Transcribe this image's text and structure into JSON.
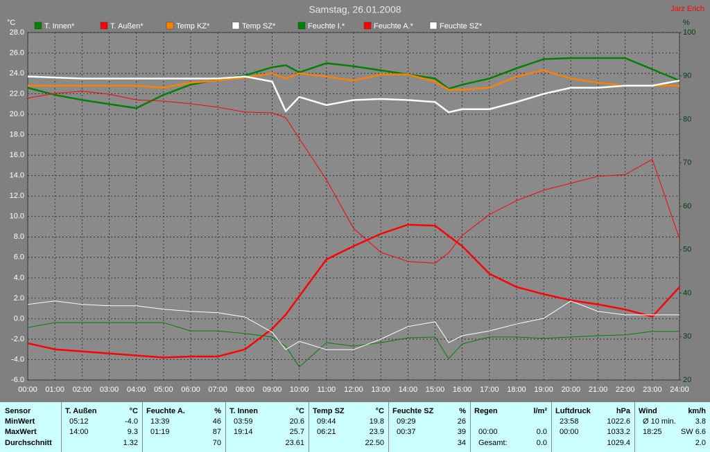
{
  "chart_data": {
    "type": "line",
    "title": "Samstag, 26.01.2008",
    "author": "Jarz Erich",
    "ylabel": "°C",
    "y2label": "%",
    "x": [
      0,
      1,
      2,
      3,
      4,
      5,
      6,
      7,
      8,
      9,
      9.5,
      10,
      11,
      12,
      13,
      14,
      15,
      15.5,
      16,
      17,
      18,
      19,
      20,
      21,
      22,
      23,
      24
    ],
    "xlim": [
      0,
      24
    ],
    "xticks": [
      {
        "value": 0,
        "label": "00:00"
      },
      {
        "value": 1,
        "label": "01:00"
      },
      {
        "value": 2,
        "label": "02:00"
      },
      {
        "value": 3,
        "label": "03:00"
      },
      {
        "value": 4,
        "label": "04:00"
      },
      {
        "value": 5,
        "label": "05:00"
      },
      {
        "value": 6,
        "label": "06:00"
      },
      {
        "value": 7,
        "label": "07:00"
      },
      {
        "value": 8,
        "label": "08:00"
      },
      {
        "value": 9,
        "label": "09:00"
      },
      {
        "value": 10,
        "label": "10:00"
      },
      {
        "value": 11,
        "label": "11:00"
      },
      {
        "value": 12,
        "label": "12:00"
      },
      {
        "value": 13,
        "label": "13:00"
      },
      {
        "value": 14,
        "label": "14:00"
      },
      {
        "value": 15,
        "label": "15:00"
      },
      {
        "value": 16,
        "label": "16:00"
      },
      {
        "value": 17,
        "label": "17:00"
      },
      {
        "value": 18,
        "label": "18:00"
      },
      {
        "value": 19,
        "label": "19:00"
      },
      {
        "value": 20,
        "label": "20:00"
      },
      {
        "value": 21,
        "label": "21:00"
      },
      {
        "value": 22,
        "label": "22:00"
      },
      {
        "value": 23,
        "label": "23:00"
      },
      {
        "value": 24,
        "label": "24:00"
      }
    ],
    "ylim": [
      -6,
      28
    ],
    "yticks": [
      {
        "value": -6,
        "label": "-6.0"
      },
      {
        "value": -4,
        "label": "-4.0"
      },
      {
        "value": -2,
        "label": "-2.0"
      },
      {
        "value": 0,
        "label": "0.0"
      },
      {
        "value": 2,
        "label": "2.0"
      },
      {
        "value": 4,
        "label": "4.0"
      },
      {
        "value": 6,
        "label": "6.0"
      },
      {
        "value": 8,
        "label": "8.0"
      },
      {
        "value": 10,
        "label": "10.0"
      },
      {
        "value": 12,
        "label": "12.0"
      },
      {
        "value": 14,
        "label": "14.0"
      },
      {
        "value": 16,
        "label": "16.0"
      },
      {
        "value": 18,
        "label": "18.0"
      },
      {
        "value": 20,
        "label": "20.0"
      },
      {
        "value": 22,
        "label": "22.0"
      },
      {
        "value": 24,
        "label": "24.0"
      },
      {
        "value": 26,
        "label": "26.0"
      },
      {
        "value": 28,
        "label": "28.0"
      }
    ],
    "y2lim": [
      20,
      100
    ],
    "y2ticks": [
      20,
      30,
      40,
      50,
      60,
      70,
      80,
      90,
      100
    ],
    "grid": true,
    "series": [
      {
        "name": "T. Innen*",
        "color": "#008000",
        "line_width": 2.5,
        "values": [
          22.6,
          21.9,
          21.4,
          21.0,
          20.6,
          21.9,
          22.9,
          23.4,
          23.8,
          24.6,
          24.8,
          24.1,
          25.0,
          24.7,
          24.3,
          23.9,
          23.5,
          22.5,
          22.9,
          23.5,
          24.5,
          25.4,
          25.5,
          25.5,
          25.5,
          24.4,
          23.3
        ]
      },
      {
        "name": "T. Außen*",
        "color": "#ff0000",
        "line_width": 2.5,
        "values": [
          -2.4,
          -3.0,
          -3.2,
          -3.4,
          -3.6,
          -3.8,
          -3.7,
          -3.7,
          -3.0,
          -1.0,
          0.4,
          2.2,
          5.8,
          7.1,
          8.3,
          9.2,
          9.1,
          8.1,
          7.1,
          4.4,
          3.1,
          2.4,
          1.8,
          1.4,
          0.9,
          0.2,
          3.1
        ]
      },
      {
        "name": "Temp KZ*",
        "color": "#ff8000",
        "line_width": 2.5,
        "values": [
          22.8,
          22.8,
          22.8,
          22.8,
          22.8,
          22.6,
          23.1,
          23.3,
          23.6,
          24.0,
          23.5,
          24.0,
          23.7,
          23.3,
          23.9,
          23.9,
          23.2,
          22.4,
          22.4,
          22.6,
          23.7,
          24.3,
          23.5,
          23.1,
          22.8,
          22.8,
          22.8
        ]
      },
      {
        "name": "Temp SZ*",
        "color": "#ffffff",
        "line_width": 2.5,
        "values": [
          23.7,
          23.6,
          23.5,
          23.5,
          23.5,
          23.5,
          23.5,
          23.5,
          23.7,
          23.2,
          20.3,
          21.7,
          20.9,
          21.4,
          21.5,
          21.4,
          21.2,
          20.2,
          20.5,
          20.5,
          21.2,
          22.0,
          22.6,
          22.6,
          22.8,
          22.8,
          23.3
        ]
      },
      {
        "name": "Feuchte I.*",
        "color": "#008000",
        "line_width": 1,
        "axis": "y2",
        "values": [
          32.1,
          33.2,
          33.2,
          33.2,
          33.2,
          33.2,
          31.3,
          31.3,
          30.7,
          29.9,
          27.8,
          23.0,
          28.6,
          27.8,
          28.6,
          29.7,
          29.9,
          24.9,
          28.3,
          29.9,
          29.9,
          29.6,
          29.9,
          30.2,
          30.4,
          31.2,
          31.2
        ]
      },
      {
        "name": "Feuchte A.*",
        "color": "#ff0000",
        "line_width": 1,
        "axis": "y2",
        "values": [
          84.9,
          86.0,
          86.5,
          85.8,
          84.5,
          84.2,
          83.6,
          82.8,
          81.7,
          81.5,
          80.4,
          75.6,
          66.1,
          54.9,
          49.4,
          47.3,
          46.9,
          49.3,
          53.3,
          58.1,
          61.3,
          63.7,
          65.3,
          66.9,
          67.3,
          70.8,
          52.5
        ]
      },
      {
        "name": "Feuchte SZ*",
        "color": "#ffffff",
        "line_width": 1,
        "axis": "y2",
        "values": [
          37.4,
          38.2,
          37.4,
          37.1,
          37.1,
          36.3,
          35.8,
          35.5,
          34.5,
          31.0,
          27.0,
          28.9,
          27.0,
          27.0,
          29.4,
          32.3,
          33.4,
          28.6,
          30.2,
          31.3,
          32.9,
          34.2,
          38.2,
          35.8,
          35.0,
          35.0,
          35.0
        ]
      }
    ]
  },
  "table": {
    "sensor_label": "Sensor",
    "row_labels": [
      "MinWert",
      "MaxWert",
      "Durchschnitt"
    ],
    "groups": [
      {
        "name": "T. Außen",
        "unit": "°C",
        "min": {
          "time": "05:12",
          "value": "-4.0"
        },
        "max": {
          "time": "14:00",
          "value": "9.3"
        },
        "avg": {
          "value": "1.32"
        }
      },
      {
        "name": "Feuchte A.",
        "unit": "%",
        "min": {
          "time": "13:39",
          "value": "46"
        },
        "max": {
          "time": "01:19",
          "value": "87"
        },
        "avg": {
          "value": "70"
        }
      },
      {
        "name": "T. Innen",
        "unit": "°C",
        "min": {
          "time": "03:59",
          "value": "20.6"
        },
        "max": {
          "time": "19:14",
          "value": "25.7"
        },
        "avg": {
          "value": "23.61"
        }
      },
      {
        "name": "Temp SZ",
        "unit": "°C",
        "min": {
          "time": "09:44",
          "value": "19.8"
        },
        "max": {
          "time": "06:21",
          "value": "23.9"
        },
        "avg": {
          "value": "22.50"
        }
      },
      {
        "name": "Feuchte SZ",
        "unit": "%",
        "min": {
          "time": "09:29",
          "value": "26"
        },
        "max": {
          "time": "00:37",
          "value": "39"
        },
        "avg": {
          "value": "34"
        }
      },
      {
        "name": "Regen",
        "unit": "l/m²",
        "max": {
          "time": "00:00",
          "value": "0.0"
        },
        "avg": {
          "time": "Gesamt:",
          "value": "0.0"
        }
      },
      {
        "name": "Luftdruck",
        "unit": "hPa",
        "min": {
          "time": "23:58",
          "value": "1022.6"
        },
        "max": {
          "time": "00:00",
          "value": "1033.2"
        },
        "avg": {
          "value": "1029.4"
        }
      },
      {
        "name": "Wind",
        "unit": "km/h",
        "min": {
          "time": "Ø 10 min.",
          "value": "3.8"
        },
        "max": {
          "time": "18:25",
          "value": "SW 6.6"
        },
        "avg": {
          "value": "2.0"
        }
      }
    ]
  }
}
